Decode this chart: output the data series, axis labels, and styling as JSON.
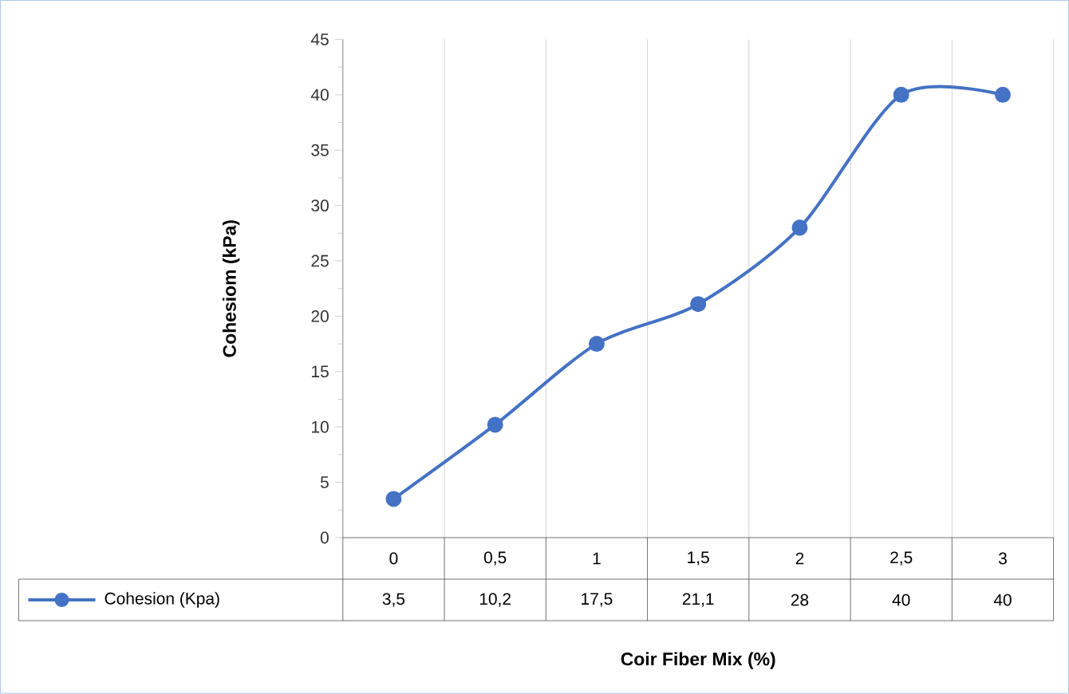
{
  "chart_data": {
    "type": "line",
    "xlabel": "Coir Fiber Mix (%)",
    "ylabel": "Cohesiom (kPa)",
    "categories": [
      "0",
      "0,5",
      "1",
      "1,5",
      "2",
      "2,5",
      "3"
    ],
    "series": [
      {
        "name": "Cohesion (Kpa)",
        "color": "#4472c4",
        "values": [
          3.5,
          10.2,
          17.5,
          21.1,
          28,
          40,
          40
        ],
        "value_labels": [
          "3,5",
          "10,2",
          "17,5",
          "21,1",
          "28",
          "40",
          "40"
        ]
      }
    ],
    "ylim": [
      0,
      45
    ],
    "yticks": [
      0,
      5,
      10,
      15,
      20,
      25,
      30,
      35,
      40,
      45
    ],
    "grid": "x",
    "legend": "bottom",
    "marker": "circle",
    "line_style": "solid"
  }
}
